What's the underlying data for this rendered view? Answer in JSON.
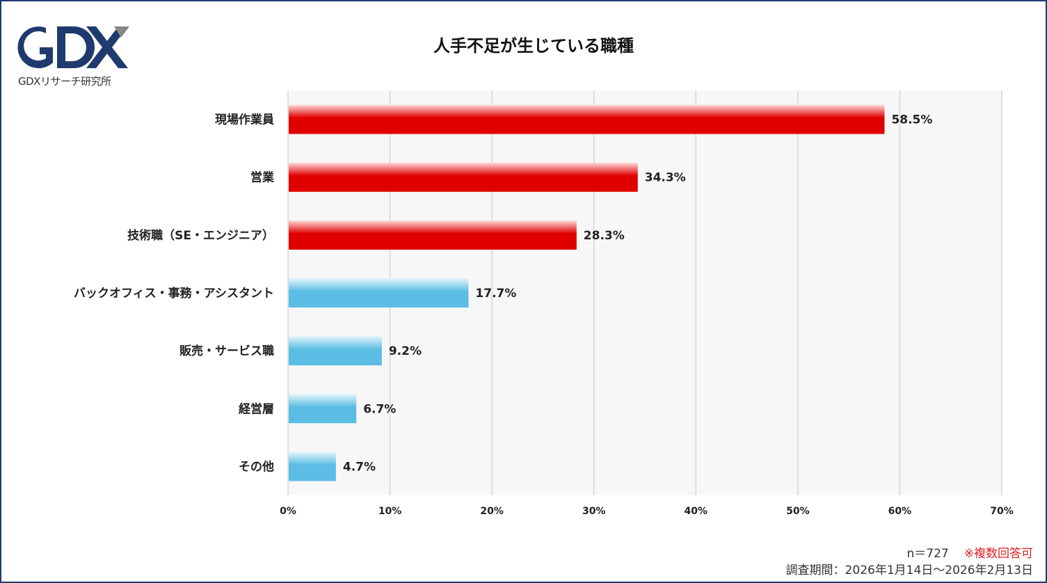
{
  "logo": {
    "text": "GDX",
    "caption": "GDXリサーチ研究所"
  },
  "chart_data": {
    "type": "bar",
    "orientation": "horizontal",
    "title": "人手不足が生じている職種",
    "categories": [
      "現場作業員",
      "営業",
      "技術職（SE・エンジニア）",
      "バックオフィス・事務・アシスタント",
      "販売・サービス職",
      "経営層",
      "その他"
    ],
    "values": [
      58.5,
      34.3,
      28.3,
      17.7,
      9.2,
      6.7,
      4.7
    ],
    "value_labels": [
      "58.5%",
      "34.3%",
      "28.3%",
      "17.7%",
      "9.2%",
      "6.7%",
      "4.7%"
    ],
    "highlight_top": 3,
    "colors": {
      "highlight": "#e00000",
      "other": "#5bbde3"
    },
    "xlim": [
      0,
      70
    ],
    "xticks": [
      "0%",
      "10%",
      "20%",
      "30%",
      "40%",
      "50%",
      "60%",
      "70%"
    ],
    "grid": true,
    "xlabel": "",
    "ylabel": ""
  },
  "footer": {
    "n": "n＝727",
    "note": "※複数回答可",
    "period": "調査期間：2026年1月14日～2026年2月13日"
  }
}
